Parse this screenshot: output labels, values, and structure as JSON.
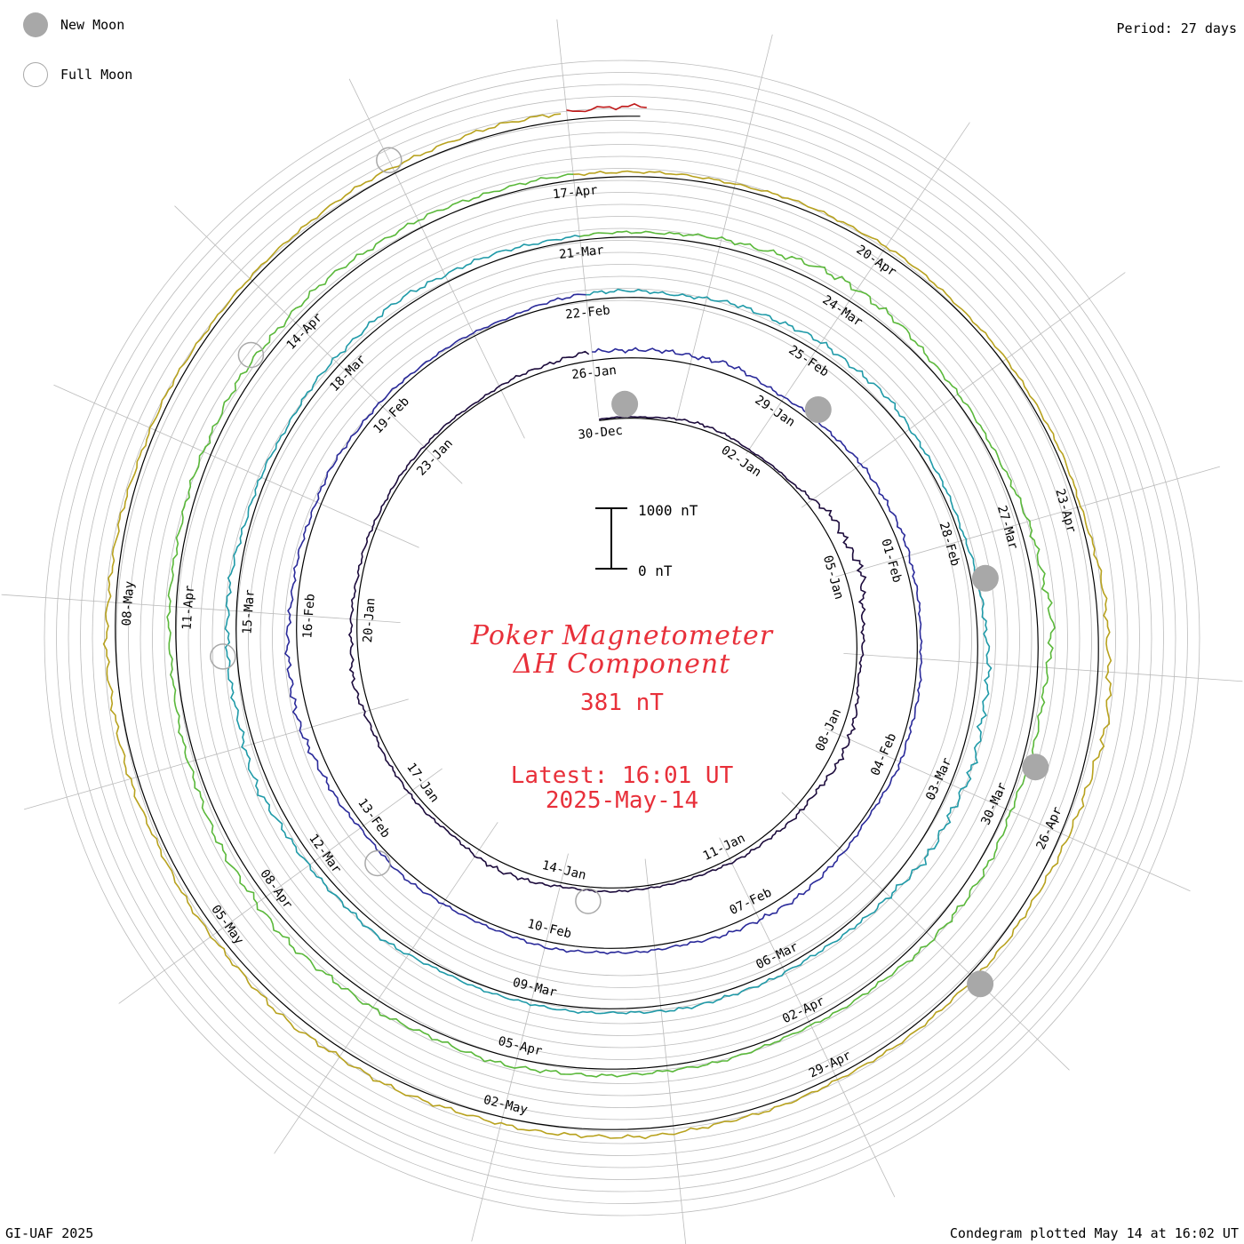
{
  "legend": {
    "new_moon_label": "New Moon",
    "full_moon_label": "Full Moon"
  },
  "period_label": "Period: 27 days",
  "footer_left": "GI-UAF 2025",
  "footer_right": "Condegram plotted May 14 at 16:02 UT",
  "center": {
    "title_line1": "Poker Magnetometer",
    "title_line2": "ΔH Component",
    "value": "381 nT",
    "latest": "Latest: 16:01 UT",
    "date": "2025-May-14"
  },
  "scale_bar": {
    "top_label": "1000 nT",
    "bottom_label": "0 nT"
  },
  "colors": {
    "accent_red": "#e8303a",
    "moon_gray": "#a8a8a8",
    "grid_gray": "#bbbbbb"
  },
  "chart_data": {
    "type": "spiral-condegram",
    "title": "Poker Magnetometer ΔH Component",
    "period_days": 27,
    "units": "nT",
    "scale_nT": [
      0,
      1000
    ],
    "start_date": "2024-12-30",
    "end_date": "2025-05-14",
    "rotations": [
      {
        "start": "30-Dec",
        "color": "#1c0b3c"
      },
      {
        "start": "26-Jan",
        "color": "#2a2a9a"
      },
      {
        "start": "22-Feb",
        "color": "#1f9aa8"
      },
      {
        "start": "21-Mar",
        "color": "#5ab83a"
      },
      {
        "start": "17-Apr",
        "color": "#b8a21e"
      },
      {
        "start": "14-May",
        "color": "#c01a1a"
      }
    ],
    "date_labels": [
      "30-Dec",
      "02-Jan",
      "05-Jan",
      "08-Jan",
      "11-Jan",
      "14-Jan",
      "17-Jan",
      "20-Jan",
      "23-Jan",
      "26-Jan",
      "29-Jan",
      "01-Feb",
      "04-Feb",
      "07-Feb",
      "10-Feb",
      "13-Feb",
      "16-Feb",
      "19-Feb",
      "22-Feb",
      "25-Feb",
      "28-Feb",
      "03-Mar",
      "06-Mar",
      "09-Mar",
      "12-Mar",
      "15-Mar",
      "18-Mar",
      "21-Mar",
      "24-Mar",
      "27-Mar",
      "30-Mar",
      "02-Apr",
      "05-Apr",
      "08-Apr",
      "11-Apr",
      "14-Apr",
      "17-Apr",
      "20-Apr",
      "23-Apr",
      "26-Apr",
      "29-Apr",
      "02-May",
      "05-May",
      "08-May"
    ],
    "label_interval_days": 3,
    "new_moons": [
      "2024-12-30",
      "2025-01-29",
      "2025-02-28",
      "2025-03-29",
      "2025-04-27"
    ],
    "full_moons": [
      "2025-01-13",
      "2025-02-12",
      "2025-03-14",
      "2025-04-13",
      "2025-05-12"
    ],
    "series_daily_dH_nT": [
      20,
      25,
      90,
      30,
      35,
      210,
      260,
      110,
      60,
      180,
      120,
      95,
      70,
      45,
      55,
      65,
      150,
      60,
      80,
      70,
      140,
      90,
      75,
      60,
      55,
      40,
      90,
      140,
      130,
      160,
      70,
      85,
      120,
      110,
      60,
      75,
      90,
      55,
      130,
      140,
      80,
      70,
      95,
      60,
      100,
      70,
      150,
      190,
      120,
      90,
      100,
      75,
      60,
      45,
      120,
      90,
      140,
      160,
      150,
      80,
      70,
      140,
      200,
      230,
      210,
      100,
      90,
      110,
      70,
      75,
      60,
      130,
      110,
      190,
      140,
      160,
      95,
      80,
      120,
      150,
      110,
      70,
      90,
      160,
      250,
      110,
      80,
      140,
      230,
      120,
      100,
      180,
      110,
      70,
      90,
      95,
      140,
      120,
      180,
      200,
      150,
      100,
      110,
      120,
      150,
      160,
      140,
      110,
      90,
      70,
      80,
      85,
      60,
      70,
      60,
      150,
      220,
      120,
      110,
      90,
      80,
      100,
      130,
      110,
      140,
      160,
      110,
      100,
      150,
      140,
      90,
      80,
      60,
      90,
      110,
      140,
      160,
      210
    ]
  }
}
